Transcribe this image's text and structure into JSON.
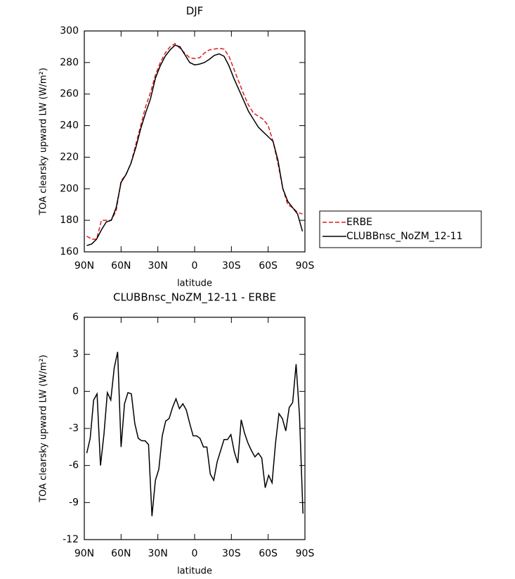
{
  "chart_data": [
    {
      "type": "line",
      "title": "DJF",
      "xlabel": "latitude",
      "ylabel": "TOA clearsky upward LW (W/m²)",
      "x": [
        88,
        84,
        80,
        76,
        72,
        68,
        64,
        60,
        56,
        52,
        48,
        44,
        40,
        36,
        32,
        28,
        24,
        20,
        16,
        12,
        8,
        4,
        0,
        -4,
        -8,
        -12,
        -16,
        -20,
        -24,
        -28,
        -32,
        -36,
        -40,
        -44,
        -48,
        -52,
        -56,
        -60,
        -64,
        -68,
        -72,
        -76,
        -80,
        -84,
        -88
      ],
      "xlim": [
        90,
        -90
      ],
      "xticks": [
        {
          "value": 90,
          "label": "90N"
        },
        {
          "value": 60,
          "label": "60N"
        },
        {
          "value": 30,
          "label": "30N"
        },
        0,
        {
          "value": -30,
          "label": "30S"
        },
        {
          "value": -60,
          "label": "60S"
        },
        {
          "value": -90,
          "label": "90S"
        }
      ],
      "ylim": [
        160,
        300
      ],
      "yticks": [
        160,
        180,
        200,
        220,
        240,
        260,
        280,
        300
      ],
      "legend": "right",
      "series": [
        {
          "name": "ERBE",
          "color": "#e41a1c",
          "dashed": true,
          "values": [
            170,
            168,
            168,
            180,
            180,
            180,
            186,
            205,
            209,
            216,
            228,
            240,
            252,
            261,
            272,
            280,
            286,
            290,
            292,
            289,
            286,
            283,
            282.5,
            283,
            286,
            288,
            288.5,
            289,
            288.5,
            284,
            276,
            268,
            260,
            253,
            248,
            246,
            244,
            240,
            230,
            216,
            200,
            190,
            188,
            185,
            184
          ]
        },
        {
          "name": "CLUBBnsc_NoZM_12-11",
          "color": "#000000",
          "dashed": false,
          "values": [
            164,
            165,
            168,
            174,
            179,
            180,
            188,
            204,
            209,
            216,
            226,
            238,
            248,
            257,
            270,
            278,
            284,
            288,
            291,
            290,
            285,
            280,
            278.5,
            279,
            280,
            282,
            284.5,
            285.5,
            284,
            278,
            270,
            263,
            256,
            249,
            244,
            239,
            236,
            233,
            230,
            218,
            200,
            192,
            188,
            184,
            173
          ]
        }
      ]
    },
    {
      "type": "line",
      "title": "CLUBBnsc_NoZM_12-11 - ERBE",
      "xlabel": "latitude",
      "ylabel": "TOA clearsky upward LW (W/m²)",
      "x": [
        88.0,
        85.2,
        82.4,
        79.6,
        76.8,
        74.0,
        71.2,
        68.4,
        65.6,
        62.8,
        60.0,
        57.2,
        54.4,
        51.6,
        48.8,
        46.0,
        43.2,
        40.4,
        37.6,
        34.8,
        32.0,
        29.2,
        26.4,
        23.6,
        20.8,
        18.0,
        15.2,
        12.4,
        9.6,
        6.8,
        4.0,
        1.2,
        -1.6,
        -4.4,
        -7.2,
        -10.0,
        -12.8,
        -15.6,
        -18.4,
        -21.2,
        -24.0,
        -26.8,
        -29.6,
        -32.4,
        -35.2,
        -38.0,
        -40.8,
        -43.6,
        -46.4,
        -49.2,
        -52.0,
        -54.8,
        -57.6,
        -60.4,
        -63.2,
        -66.0,
        -68.8,
        -71.6,
        -74.4,
        -77.2,
        -80.0,
        -82.8,
        -85.6,
        -88.4
      ],
      "xlim": [
        90,
        -90
      ],
      "xticks": [
        {
          "value": 90,
          "label": "90N"
        },
        {
          "value": 60,
          "label": "60N"
        },
        {
          "value": 30,
          "label": "30N"
        },
        0,
        {
          "value": -30,
          "label": "30S"
        },
        {
          "value": -60,
          "label": "60S"
        },
        {
          "value": -90,
          "label": "90S"
        }
      ],
      "ylim": [
        -12,
        6
      ],
      "yticks": [
        -12,
        -9,
        -6,
        -3,
        0,
        3,
        6
      ],
      "series": [
        {
          "color": "#000000",
          "dashed": false,
          "values": [
            -5,
            -3.8,
            -0.7,
            -0.2,
            -6,
            -3.5,
            -0.1,
            -0.7,
            1.9,
            3.2,
            -4.5,
            -1,
            -0.1,
            -0.2,
            -2.6,
            -3.8,
            -4,
            -4,
            -4.3,
            -10.1,
            -7.2,
            -6.3,
            -3.6,
            -2.4,
            -2.2,
            -1.3,
            -0.6,
            -1.4,
            -1,
            -1.5,
            -2.6,
            -3.6,
            -3.6,
            -3.8,
            -4.5,
            -4.5,
            -6.7,
            -7.2,
            -5.7,
            -4.8,
            -3.9,
            -3.9,
            -3.5,
            -4.9,
            -5.8,
            -2.3,
            -3.4,
            -4.2,
            -4.8,
            -5.3,
            -5,
            -5.4,
            -7.8,
            -6.8,
            -7.4,
            -4.2,
            -1.8,
            -2.2,
            -3.2,
            -1.3,
            -0.9,
            2.2,
            -2,
            -9.9
          ]
        }
      ]
    }
  ]
}
